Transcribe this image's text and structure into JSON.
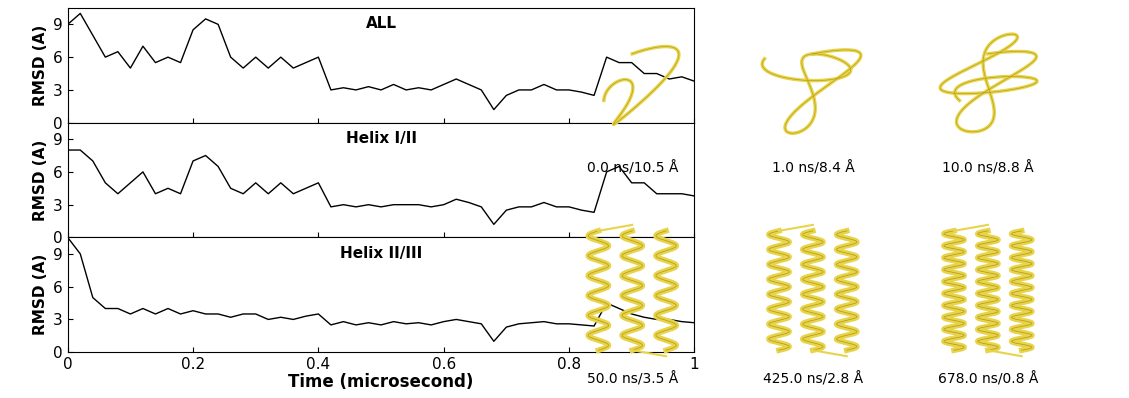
{
  "chart_data": [
    {
      "type": "line",
      "title": "ALL",
      "y_label": "RMSD (A)",
      "tick_labels": "y",
      "xlim": [
        0,
        1
      ],
      "xticks": [
        0,
        0.2,
        0.4,
        0.6,
        0.8,
        1
      ],
      "ylim": [
        0,
        10.5
      ],
      "yticks": [
        0,
        3,
        6,
        9
      ],
      "x": [
        0,
        0.02,
        0.04,
        0.06,
        0.08,
        0.1,
        0.12,
        0.14,
        0.16,
        0.18,
        0.2,
        0.22,
        0.24,
        0.26,
        0.28,
        0.3,
        0.32,
        0.34,
        0.36,
        0.38,
        0.4,
        0.42,
        0.44,
        0.46,
        0.48,
        0.5,
        0.52,
        0.54,
        0.56,
        0.58,
        0.6,
        0.62,
        0.64,
        0.66,
        0.68,
        0.7,
        0.72,
        0.74,
        0.76,
        0.78,
        0.8,
        0.82,
        0.84,
        0.86,
        0.88,
        0.9,
        0.92,
        0.94,
        0.96,
        0.98,
        1
      ],
      "values": [
        9,
        10,
        8,
        6,
        6.5,
        5,
        7,
        5.5,
        6,
        5.5,
        8.5,
        9.5,
        9,
        6,
        5,
        6,
        5,
        6,
        5,
        5.5,
        6,
        3,
        3.2,
        3,
        3.3,
        3,
        3.5,
        3,
        3.2,
        3,
        3.5,
        4,
        3.5,
        3,
        1.2,
        2.5,
        3,
        3,
        3.5,
        3,
        3,
        2.8,
        2.5,
        6,
        5.5,
        5.5,
        4.5,
        4.5,
        4,
        4.2,
        3.8
      ],
      "color": "#000000"
    },
    {
      "type": "line",
      "title": "Helix I/II",
      "y_label": "RMSD (A)",
      "tick_labels": "y",
      "xlim": [
        0,
        1
      ],
      "xticks": [
        0,
        0.2,
        0.4,
        0.6,
        0.8,
        1
      ],
      "ylim": [
        0,
        10.5
      ],
      "yticks": [
        0,
        3,
        6,
        9
      ],
      "x": [
        0,
        0.02,
        0.04,
        0.06,
        0.08,
        0.1,
        0.12,
        0.14,
        0.16,
        0.18,
        0.2,
        0.22,
        0.24,
        0.26,
        0.28,
        0.3,
        0.32,
        0.34,
        0.36,
        0.38,
        0.4,
        0.42,
        0.44,
        0.46,
        0.48,
        0.5,
        0.52,
        0.54,
        0.56,
        0.58,
        0.6,
        0.62,
        0.64,
        0.66,
        0.68,
        0.7,
        0.72,
        0.74,
        0.76,
        0.78,
        0.8,
        0.82,
        0.84,
        0.86,
        0.88,
        0.9,
        0.92,
        0.94,
        0.96,
        0.98,
        1
      ],
      "values": [
        8,
        8,
        7,
        5,
        4,
        5,
        6,
        4,
        4.5,
        4,
        7,
        7.5,
        6.5,
        4.5,
        4,
        5,
        4,
        5,
        4,
        4.5,
        5,
        2.8,
        3,
        2.8,
        3,
        2.8,
        3,
        3,
        3,
        2.8,
        3,
        3.5,
        3.2,
        2.8,
        1.2,
        2.5,
        2.8,
        2.8,
        3.2,
        2.8,
        2.8,
        2.5,
        2.3,
        6,
        6.5,
        5,
        5,
        4,
        4,
        4,
        3.8
      ],
      "color": "#000000"
    },
    {
      "type": "line",
      "title": "Helix II/III",
      "y_label": "RMSD (A)",
      "x_label": "Time (microsecond)",
      "xlim": [
        0,
        1
      ],
      "xticks": [
        0,
        0.2,
        0.4,
        0.6,
        0.8,
        1
      ],
      "ylim": [
        0,
        10.5
      ],
      "yticks": [
        0,
        3,
        6,
        9
      ],
      "x": [
        0,
        0.02,
        0.04,
        0.06,
        0.08,
        0.1,
        0.12,
        0.14,
        0.16,
        0.18,
        0.2,
        0.22,
        0.24,
        0.26,
        0.28,
        0.3,
        0.32,
        0.34,
        0.36,
        0.38,
        0.4,
        0.42,
        0.44,
        0.46,
        0.48,
        0.5,
        0.52,
        0.54,
        0.56,
        0.58,
        0.6,
        0.62,
        0.64,
        0.66,
        0.68,
        0.7,
        0.72,
        0.74,
        0.76,
        0.78,
        0.8,
        0.82,
        0.84,
        0.86,
        0.88,
        0.9,
        0.92,
        0.94,
        0.96,
        0.98,
        1
      ],
      "values": [
        10.5,
        9,
        5,
        4,
        4,
        3.5,
        4,
        3.5,
        4,
        3.5,
        3.8,
        3.5,
        3.5,
        3.2,
        3.5,
        3.5,
        3,
        3.2,
        3,
        3.3,
        3.5,
        2.5,
        2.8,
        2.5,
        2.7,
        2.5,
        2.8,
        2.6,
        2.7,
        2.5,
        2.8,
        3,
        2.8,
        2.6,
        1.0,
        2.3,
        2.6,
        2.7,
        2.8,
        2.6,
        2.6,
        2.5,
        2.4,
        4.5,
        4,
        3.5,
        3.2,
        3,
        3,
        2.8,
        2.7
      ],
      "color": "#000000"
    }
  ],
  "snapshots": [
    {
      "label": "0.0 ns/10.5 Å"
    },
    {
      "label": "1.0 ns/8.4 Å"
    },
    {
      "label": "10.0 ns/8.8 Å"
    },
    {
      "label": "50.0 ns/3.5 Å"
    },
    {
      "label": "425.0 ns/2.8 Å"
    },
    {
      "label": "678.0 ns/0.8 Å"
    }
  ]
}
